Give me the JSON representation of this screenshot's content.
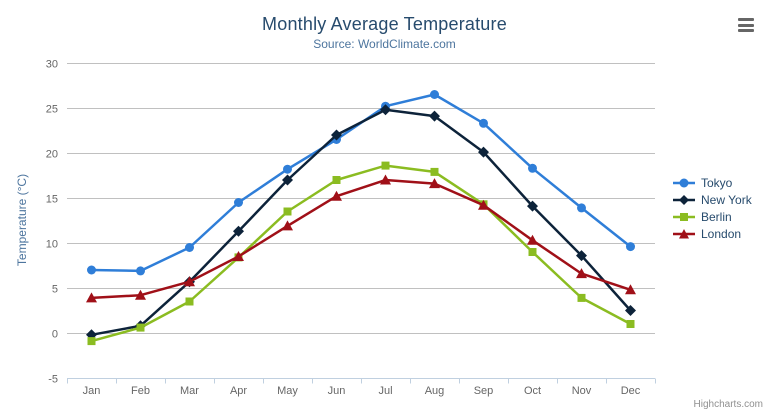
{
  "header": {
    "title": "Monthly Average Temperature",
    "subtitle": "Source: WorldClimate.com"
  },
  "credits": "Highcharts.com",
  "icons": {
    "context_menu": "hamburger-icon"
  },
  "colors": {
    "title": "#274b6d",
    "subtitle": "#4d759e",
    "axis_title": "#4d759e",
    "tick_label": "#666666",
    "grid_line": "#c0c0c0",
    "axis_line": "#c0d0e0",
    "legend_text": "#274b6d",
    "credits_text": "#909090"
  },
  "chart_data": {
    "type": "line",
    "title": "Monthly Average Temperature",
    "subtitle": "Source: WorldClimate.com",
    "categories": [
      "Jan",
      "Feb",
      "Mar",
      "Apr",
      "May",
      "Jun",
      "Jul",
      "Aug",
      "Sep",
      "Oct",
      "Nov",
      "Dec"
    ],
    "xlabel": "",
    "ylabel": "Temperature (°C)",
    "ylim": [
      -5,
      30
    ],
    "ytick_step": 5,
    "grid": true,
    "legend_position": "right",
    "series": [
      {
        "name": "Tokyo",
        "color": "#2f7ed8",
        "marker": "circle",
        "values": [
          7.0,
          6.9,
          9.5,
          14.5,
          18.2,
          21.5,
          25.2,
          26.5,
          23.3,
          18.3,
          13.9,
          9.6
        ]
      },
      {
        "name": "New York",
        "color": "#0d233a",
        "marker": "diamond",
        "values": [
          -0.2,
          0.8,
          5.7,
          11.3,
          17.0,
          22.0,
          24.8,
          24.1,
          20.1,
          14.1,
          8.6,
          2.5
        ]
      },
      {
        "name": "Berlin",
        "color": "#8bbc21",
        "marker": "square",
        "values": [
          -0.9,
          0.6,
          3.5,
          8.4,
          13.5,
          17.0,
          18.6,
          17.9,
          14.3,
          9.0,
          3.9,
          1.0
        ]
      },
      {
        "name": "London",
        "color": "#a01018",
        "marker": "triangle",
        "values": [
          3.9,
          4.2,
          5.7,
          8.5,
          11.9,
          15.2,
          17.0,
          16.6,
          14.2,
          10.3,
          6.6,
          4.8
        ]
      }
    ]
  }
}
